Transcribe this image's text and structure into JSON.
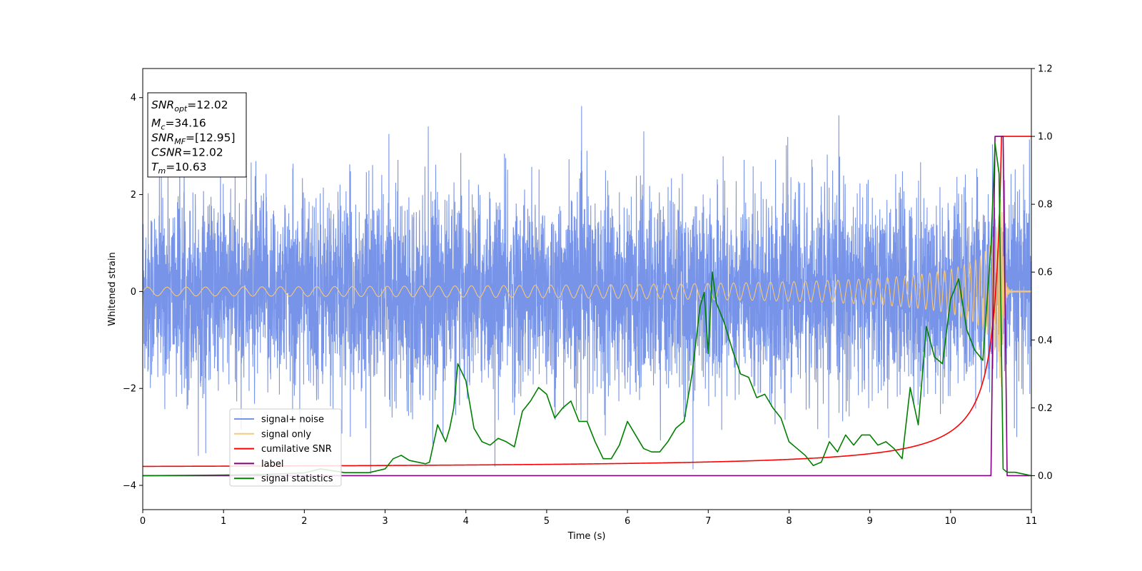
{
  "chart_data": {
    "type": "line",
    "xlabel": "Time (s)",
    "ylabel": "Whitened strain",
    "xlim": [
      0,
      11
    ],
    "ylim": [
      -4.5,
      4.6
    ],
    "y2lim": [
      -0.1,
      1.2
    ],
    "xticks": [
      0,
      1,
      2,
      3,
      4,
      5,
      6,
      7,
      8,
      9,
      10,
      11
    ],
    "yticks": [
      -4,
      -2,
      0,
      2,
      4
    ],
    "y2ticks": [
      "0.0",
      "0.2",
      "0.4",
      "0.6",
      "0.8",
      "1.0",
      "1.2"
    ],
    "grid": false,
    "legend_position": "lower-left",
    "info_box": {
      "lines": [
        {
          "name": "SNR",
          "sub": "opt",
          "value": "=12.02"
        },
        {
          "name": "M",
          "sub": "c",
          "value": "=34.16"
        },
        {
          "name": "SNR",
          "sub": "MF",
          "value": "=[12.95]"
        },
        {
          "name": "CSNR",
          "sub": "",
          "value": "=12.02"
        },
        {
          "name": "T",
          "sub": "m",
          "value": "=10.63"
        }
      ]
    },
    "series": [
      {
        "name": "signal+ noise",
        "color": "#7894e8",
        "axis": "left",
        "kind": "noise",
        "envelope_approx": [
          -2.5,
          2.5
        ]
      },
      {
        "name": "signal only",
        "color": "#f7c87a",
        "axis": "left",
        "kind": "chirp",
        "merger_time": 10.63,
        "peak_amplitude": 2.2
      },
      {
        "name": "cumilative SNR",
        "color": "#ff0000",
        "axis": "right",
        "x": [
          0,
          1,
          2,
          3,
          4,
          5,
          6,
          7,
          8,
          9,
          9.5,
          10,
          10.2,
          10.4,
          10.5,
          10.55,
          10.6,
          10.63,
          10.7,
          11
        ],
        "y": [
          0.03,
          0.035,
          0.04,
          0.045,
          0.05,
          0.058,
          0.065,
          0.078,
          0.095,
          0.125,
          0.15,
          0.2,
          0.24,
          0.32,
          0.42,
          0.52,
          0.75,
          1.0,
          1.0,
          1.0
        ]
      },
      {
        "name": "label",
        "color": "#800080",
        "axis": "right",
        "x": [
          0,
          10.5,
          10.55,
          10.65,
          10.7,
          11
        ],
        "y": [
          0,
          0,
          1.0,
          1.0,
          0,
          0
        ]
      },
      {
        "name": "signal statistics",
        "color": "#008000",
        "axis": "right",
        "x": [
          0,
          0.5,
          1,
          1.5,
          2,
          2.2,
          2.5,
          2.8,
          3,
          3.1,
          3.2,
          3.3,
          3.4,
          3.5,
          3.55,
          3.65,
          3.75,
          3.8,
          3.85,
          3.9,
          4,
          4.1,
          4.2,
          4.3,
          4.4,
          4.5,
          4.6,
          4.7,
          4.8,
          4.9,
          5,
          5.1,
          5.2,
          5.3,
          5.4,
          5.5,
          5.6,
          5.7,
          5.8,
          5.9,
          6,
          6.1,
          6.2,
          6.3,
          6.4,
          6.5,
          6.6,
          6.7,
          6.8,
          6.9,
          6.95,
          7.0,
          7.05,
          7.1,
          7.2,
          7.3,
          7.4,
          7.5,
          7.6,
          7.7,
          7.8,
          7.9,
          8,
          8.1,
          8.2,
          8.3,
          8.4,
          8.5,
          8.6,
          8.7,
          8.8,
          8.9,
          9,
          9.1,
          9.2,
          9.3,
          9.4,
          9.5,
          9.6,
          9.7,
          9.8,
          9.9,
          10,
          10.1,
          10.2,
          10.3,
          10.4,
          10.5,
          10.55,
          10.6,
          10.65,
          10.7,
          10.8,
          11
        ],
        "y": [
          0,
          0.001,
          0.002,
          0.004,
          0.008,
          0.02,
          0.009,
          0.009,
          0.02,
          0.05,
          0.06,
          0.045,
          0.04,
          0.035,
          0.04,
          0.15,
          0.1,
          0.14,
          0.2,
          0.33,
          0.28,
          0.14,
          0.1,
          0.09,
          0.11,
          0.1,
          0.085,
          0.19,
          0.22,
          0.26,
          0.24,
          0.17,
          0.2,
          0.22,
          0.16,
          0.16,
          0.1,
          0.05,
          0.05,
          0.09,
          0.16,
          0.12,
          0.08,
          0.07,
          0.07,
          0.1,
          0.14,
          0.16,
          0.3,
          0.5,
          0.54,
          0.36,
          0.6,
          0.51,
          0.45,
          0.37,
          0.3,
          0.29,
          0.23,
          0.24,
          0.2,
          0.17,
          0.1,
          0.08,
          0.06,
          0.03,
          0.04,
          0.1,
          0.07,
          0.12,
          0.09,
          0.12,
          0.12,
          0.09,
          0.1,
          0.08,
          0.05,
          0.26,
          0.15,
          0.44,
          0.35,
          0.33,
          0.52,
          0.58,
          0.43,
          0.37,
          0.34,
          0.68,
          0.98,
          0.89,
          0.02,
          0.01,
          0.01,
          0.0
        ]
      }
    ]
  }
}
